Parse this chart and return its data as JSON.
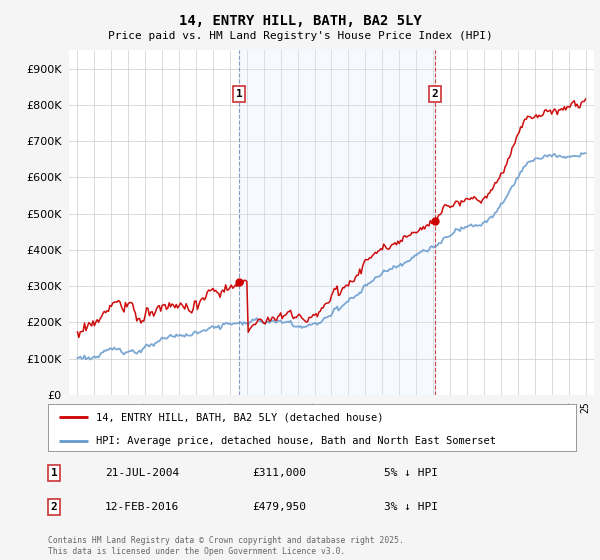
{
  "title": "14, ENTRY HILL, BATH, BA2 5LY",
  "subtitle": "Price paid vs. HM Land Registry's House Price Index (HPI)",
  "ylim": [
    0,
    950000
  ],
  "yticks": [
    0,
    100000,
    200000,
    300000,
    400000,
    500000,
    600000,
    700000,
    800000,
    900000
  ],
  "ytick_labels": [
    "£0",
    "£100K",
    "£200K",
    "£300K",
    "£400K",
    "£500K",
    "£600K",
    "£700K",
    "£800K",
    "£900K"
  ],
  "background_color": "#f5f5f5",
  "plot_bg_color": "#ffffff",
  "grid_color": "#cccccc",
  "shade_color": "#ddeeff",
  "line_color_red": "#cc0000",
  "line_color_blue": "#6699cc",
  "purchase1_year": 2004.55,
  "purchase1_price": 311000,
  "purchase1_label": "1",
  "purchase1_date": "21-JUL-2004",
  "purchase1_amount": "£311,000",
  "purchase1_hpi": "5% ↓ HPI",
  "purchase2_year": 2016.12,
  "purchase2_price": 479950,
  "purchase2_label": "2",
  "purchase2_date": "12-FEB-2016",
  "purchase2_amount": "£479,950",
  "purchase2_hpi": "3% ↓ HPI",
  "legend_line1": "14, ENTRY HILL, BATH, BA2 5LY (detached house)",
  "legend_line2": "HPI: Average price, detached house, Bath and North East Somerset",
  "footer": "Contains HM Land Registry data © Crown copyright and database right 2025.\nThis data is licensed under the Open Government Licence v3.0.",
  "xmin": 1994.5,
  "xmax": 2025.5
}
